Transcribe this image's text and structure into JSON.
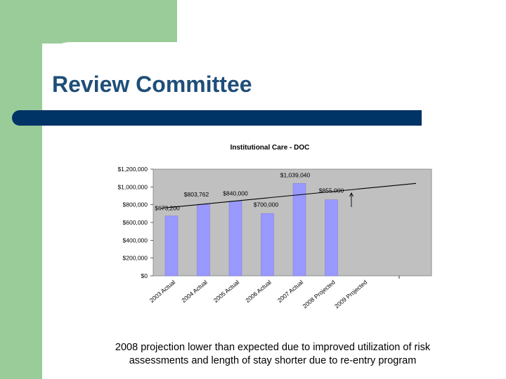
{
  "slide": {
    "title": "Review Committee",
    "caption_line1": "2008 projection lower than expected due to improved utilization of risk",
    "caption_line2": "assessments and length of stay shorter due to re-entry program"
  },
  "colors": {
    "sidebar": "#99cc99",
    "rule": "#003366",
    "title": "#1f4e79",
    "plot_bg": "#c0c0c0",
    "bar": "#9999ff",
    "trend": "#000000"
  },
  "chart_data": {
    "type": "bar",
    "title": "Institutional Care - DOC",
    "categories": [
      "2003 Actual",
      "2004 Actual",
      "2005 Actual",
      "2006 Actual",
      "2007 Actual",
      "2008 Projected",
      "2009 Projected"
    ],
    "values": [
      673200,
      803762,
      840000,
      700000,
      1039040,
      855000,
      null
    ],
    "data_labels": [
      "$673,200",
      "$803,762",
      "$840,000",
      "$700,000",
      "$1,039,040",
      "$855,000",
      ""
    ],
    "yticks": [
      "$0",
      "$200,000",
      "$400,000",
      "$600,000",
      "$800,000",
      "$1,000,000",
      "$1,200,000"
    ],
    "ylim": [
      0,
      1200000
    ],
    "trendline": {
      "type": "linear",
      "start": 760000,
      "end": 1040000
    },
    "grid": false,
    "legend": "none"
  }
}
